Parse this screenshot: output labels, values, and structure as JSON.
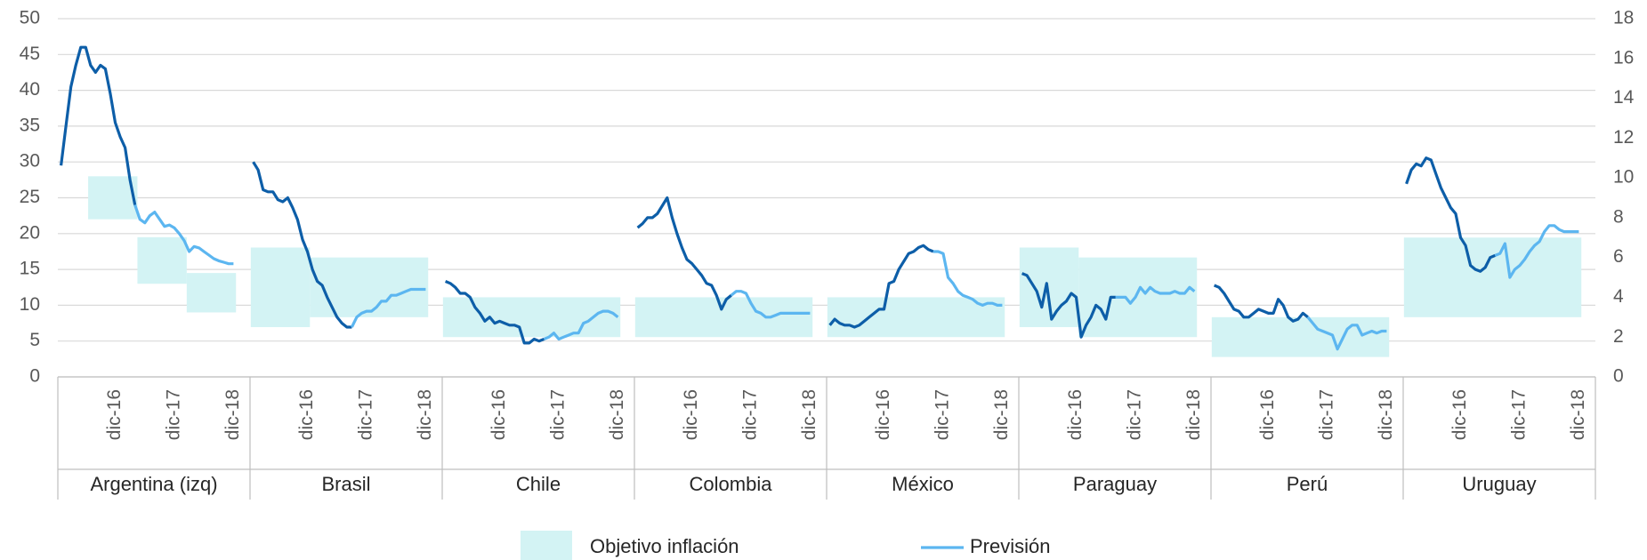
{
  "chart_data": {
    "type": "line",
    "ylim": [
      0,
      50
    ],
    "yticks": [
      0,
      5,
      10,
      15,
      20,
      25,
      30,
      35,
      40,
      45,
      50
    ],
    "y2lim": [
      0,
      18
    ],
    "y2ticks": [
      0,
      2,
      4,
      6,
      8,
      10,
      12,
      14,
      16,
      18
    ],
    "grid": true,
    "colors": {
      "actual": "#0d5ea8",
      "forecast": "#5cb6f0",
      "target": "#d3f3f4"
    },
    "legend": {
      "target": "Objetivo inflación",
      "forecast": "Previsión"
    },
    "groups": [
      {
        "name": "Argentina (izq)",
        "axis": "y",
        "categories": [
          null,
          null,
          null,
          null,
          null,
          null,
          null,
          null,
          null,
          null,
          null,
          "dic-16",
          null,
          null,
          null,
          null,
          null,
          null,
          null,
          null,
          null,
          null,
          null,
          "dic-17",
          null,
          null,
          null,
          null,
          null,
          null,
          null,
          null,
          null,
          null,
          null,
          "dic-18"
        ],
        "actual": [
          29.5,
          35,
          40.5,
          43.5,
          46,
          46,
          43.5,
          42.5,
          43.5,
          43,
          39.5,
          35.5,
          33.5,
          32,
          27.5,
          24,
          null,
          null,
          null,
          null,
          null,
          null,
          null,
          null,
          null,
          null,
          null,
          null,
          null,
          null,
          null,
          null,
          null,
          null,
          null,
          null
        ],
        "forecast": [
          null,
          null,
          null,
          null,
          null,
          null,
          null,
          null,
          null,
          null,
          null,
          null,
          null,
          null,
          null,
          24,
          22,
          21.5,
          22.5,
          23,
          22,
          21,
          21.2,
          20.8,
          20,
          19,
          17.5,
          18.2,
          18,
          17.5,
          17,
          16.5,
          16.2,
          16,
          15.8,
          15.8
        ],
        "targets": [
          {
            "start": 6,
            "end": 15,
            "low": 22,
            "high": 28
          },
          {
            "start": 16,
            "end": 25,
            "low": 13,
            "high": 19.5
          },
          {
            "start": 26,
            "end": 35,
            "low": 9,
            "high": 14.5
          }
        ]
      },
      {
        "name": "Brasil",
        "axis": "y2",
        "categories": [
          null,
          null,
          null,
          null,
          null,
          null,
          null,
          null,
          null,
          null,
          null,
          "dic-16",
          null,
          null,
          null,
          null,
          null,
          null,
          null,
          null,
          null,
          null,
          null,
          "dic-17",
          null,
          null,
          null,
          null,
          null,
          null,
          null,
          null,
          null,
          null,
          null,
          "dic-18"
        ],
        "actual": [
          10.8,
          10.4,
          9.4,
          9.3,
          9.3,
          8.9,
          8.8,
          9.0,
          8.5,
          7.9,
          6.9,
          6.3,
          5.4,
          4.8,
          4.6,
          4.0,
          3.5,
          3.0,
          2.7,
          2.5,
          2.5,
          null,
          null,
          null,
          null,
          null,
          null,
          null,
          null,
          null,
          null,
          null,
          null,
          null,
          null,
          null
        ],
        "forecast": [
          null,
          null,
          null,
          null,
          null,
          null,
          null,
          null,
          null,
          null,
          null,
          null,
          null,
          null,
          null,
          null,
          null,
          null,
          null,
          null,
          2.5,
          3.0,
          3.2,
          3.3,
          3.3,
          3.5,
          3.8,
          3.8,
          4.1,
          4.1,
          4.2,
          4.3,
          4.4,
          4.4,
          4.4,
          4.4
        ],
        "targets": [
          {
            "start": 0,
            "end": 11,
            "low": 2.5,
            "high": 6.5
          },
          {
            "start": 12,
            "end": 35,
            "low": 3,
            "high": 6
          }
        ]
      },
      {
        "name": "Chile",
        "axis": "y2",
        "categories": [
          null,
          null,
          null,
          null,
          null,
          null,
          null,
          null,
          null,
          null,
          null,
          "dic-16",
          null,
          null,
          null,
          null,
          null,
          null,
          null,
          null,
          null,
          null,
          null,
          "dic-17",
          null,
          null,
          null,
          null,
          null,
          null,
          null,
          null,
          null,
          null,
          null,
          "dic-18"
        ],
        "actual": [
          4.8,
          4.7,
          4.5,
          4.2,
          4.2,
          4.0,
          3.5,
          3.2,
          2.8,
          3.0,
          2.7,
          2.8,
          2.7,
          2.6,
          2.6,
          2.5,
          1.7,
          1.7,
          1.9,
          1.8,
          1.9,
          null,
          null,
          null,
          null,
          null,
          null,
          null,
          null,
          null,
          null,
          null,
          null,
          null,
          null,
          null
        ],
        "forecast": [
          null,
          null,
          null,
          null,
          null,
          null,
          null,
          null,
          null,
          null,
          null,
          null,
          null,
          null,
          null,
          null,
          null,
          null,
          null,
          null,
          1.9,
          2.0,
          2.2,
          1.9,
          2.0,
          2.1,
          2.2,
          2.2,
          2.7,
          2.8,
          3.0,
          3.2,
          3.3,
          3.3,
          3.2,
          3.0
        ],
        "targets": [
          {
            "start": 0,
            "end": 35,
            "low": 2,
            "high": 4
          }
        ]
      },
      {
        "name": "Colombia",
        "axis": "y2",
        "categories": [
          null,
          null,
          null,
          null,
          null,
          null,
          null,
          null,
          null,
          null,
          null,
          "dic-16",
          null,
          null,
          null,
          null,
          null,
          null,
          null,
          null,
          null,
          null,
          null,
          "dic-17",
          null,
          null,
          null,
          null,
          null,
          null,
          null,
          null,
          null,
          null,
          null,
          "dic-18"
        ],
        "actual": [
          7.5,
          7.7,
          8.0,
          8.0,
          8.2,
          8.6,
          9.0,
          8.0,
          7.2,
          6.5,
          5.9,
          5.7,
          5.4,
          5.1,
          4.7,
          4.6,
          4.1,
          3.4,
          3.9,
          4.1,
          null,
          null,
          null,
          null,
          null,
          null,
          null,
          null,
          null,
          null,
          null,
          null,
          null,
          null,
          null,
          null
        ],
        "forecast": [
          null,
          null,
          null,
          null,
          null,
          null,
          null,
          null,
          null,
          null,
          null,
          null,
          null,
          null,
          null,
          null,
          null,
          null,
          null,
          4.1,
          4.3,
          4.3,
          4.2,
          3.7,
          3.3,
          3.2,
          3.0,
          3.0,
          3.1,
          3.2,
          3.2,
          3.2,
          3.2,
          3.2,
          3.2,
          3.2
        ],
        "targets": [
          {
            "start": 0,
            "end": 35,
            "low": 2,
            "high": 4
          }
        ]
      },
      {
        "name": "México",
        "axis": "y2",
        "categories": [
          null,
          null,
          null,
          null,
          null,
          null,
          null,
          null,
          null,
          null,
          null,
          "dic-16",
          null,
          null,
          null,
          null,
          null,
          null,
          null,
          null,
          null,
          null,
          null,
          "dic-17",
          null,
          null,
          null,
          null,
          null,
          null,
          null,
          null,
          null,
          null,
          null,
          "dic-18"
        ],
        "actual": [
          2.6,
          2.9,
          2.7,
          2.6,
          2.6,
          2.5,
          2.6,
          2.8,
          3.0,
          3.2,
          3.4,
          3.4,
          4.7,
          4.8,
          5.4,
          5.8,
          6.2,
          6.3,
          6.5,
          6.6,
          6.4,
          6.3,
          null,
          null,
          null,
          null,
          null,
          null,
          null,
          null,
          null,
          null,
          null,
          null,
          null,
          null
        ],
        "forecast": [
          null,
          null,
          null,
          null,
          null,
          null,
          null,
          null,
          null,
          null,
          null,
          null,
          null,
          null,
          null,
          null,
          null,
          null,
          null,
          null,
          null,
          6.3,
          6.3,
          6.2,
          5.0,
          4.7,
          4.3,
          4.1,
          4.0,
          3.9,
          3.7,
          3.6,
          3.7,
          3.7,
          3.6,
          3.6
        ],
        "targets": [
          {
            "start": 0,
            "end": 35,
            "low": 2,
            "high": 4
          }
        ]
      },
      {
        "name": "Paraguay",
        "axis": "y2",
        "categories": [
          null,
          null,
          null,
          null,
          null,
          null,
          null,
          null,
          null,
          null,
          null,
          "dic-16",
          null,
          null,
          null,
          null,
          null,
          null,
          null,
          null,
          null,
          null,
          null,
          "dic-17",
          null,
          null,
          null,
          null,
          null,
          null,
          null,
          null,
          null,
          null,
          null,
          "dic-18"
        ],
        "actual": [
          5.2,
          5.1,
          4.7,
          4.3,
          3.5,
          4.7,
          2.9,
          3.3,
          3.6,
          3.8,
          4.2,
          4.0,
          2.0,
          2.6,
          3.0,
          3.6,
          3.4,
          2.9,
          4.0,
          4.0,
          null,
          null,
          null,
          null,
          null,
          null,
          null,
          null,
          null,
          null,
          null,
          null,
          null,
          null,
          null,
          null
        ],
        "forecast": [
          null,
          null,
          null,
          null,
          null,
          null,
          null,
          null,
          null,
          null,
          null,
          null,
          null,
          null,
          null,
          null,
          null,
          null,
          null,
          4.0,
          4.0,
          4.0,
          3.7,
          4.0,
          4.5,
          4.2,
          4.5,
          4.3,
          4.2,
          4.2,
          4.2,
          4.3,
          4.2,
          4.2,
          4.5,
          4.3
        ],
        "targets": [
          {
            "start": 0,
            "end": 11,
            "low": 2.5,
            "high": 6.5
          },
          {
            "start": 12,
            "end": 35,
            "low": 2,
            "high": 6
          }
        ]
      },
      {
        "name": "Perú",
        "axis": "y2",
        "categories": [
          null,
          null,
          null,
          null,
          null,
          null,
          null,
          null,
          null,
          null,
          null,
          "dic-16",
          null,
          null,
          null,
          null,
          null,
          null,
          null,
          null,
          null,
          null,
          null,
          "dic-17",
          null,
          null,
          null,
          null,
          null,
          null,
          null,
          null,
          null,
          null,
          null,
          "dic-18"
        ],
        "actual": [
          4.6,
          4.5,
          4.2,
          3.8,
          3.4,
          3.3,
          3.0,
          3.0,
          3.2,
          3.4,
          3.3,
          3.2,
          3.2,
          3.9,
          3.6,
          3.0,
          2.8,
          2.9,
          3.2,
          3.0,
          null,
          null,
          null,
          null,
          null,
          null,
          null,
          null,
          null,
          null,
          null,
          null,
          null,
          null,
          null,
          null
        ],
        "forecast": [
          null,
          null,
          null,
          null,
          null,
          null,
          null,
          null,
          null,
          null,
          null,
          null,
          null,
          null,
          null,
          null,
          null,
          null,
          null,
          3.0,
          2.7,
          2.4,
          2.3,
          2.2,
          2.1,
          1.4,
          1.9,
          2.4,
          2.6,
          2.6,
          2.1,
          2.2,
          2.3,
          2.2,
          2.3,
          2.3
        ],
        "targets": [
          {
            "start": 0,
            "end": 35,
            "low": 1,
            "high": 3
          }
        ]
      },
      {
        "name": "Uruguay",
        "axis": "y2",
        "categories": [
          null,
          null,
          null,
          null,
          null,
          null,
          null,
          null,
          null,
          null,
          null,
          "dic-16",
          null,
          null,
          null,
          null,
          null,
          null,
          null,
          null,
          null,
          null,
          null,
          "dic-17",
          null,
          null,
          null,
          null,
          null,
          null,
          null,
          null,
          null,
          null,
          null,
          "dic-18"
        ],
        "actual": [
          9.7,
          10.4,
          10.7,
          10.6,
          11.0,
          10.9,
          10.2,
          9.5,
          9.0,
          8.5,
          8.2,
          7.0,
          6.6,
          5.6,
          5.4,
          5.3,
          5.5,
          6.0,
          6.1,
          null,
          null,
          null,
          null,
          null,
          null,
          null,
          null,
          null,
          null,
          null,
          null,
          null,
          null,
          null,
          null,
          null
        ],
        "forecast": [
          null,
          null,
          null,
          null,
          null,
          null,
          null,
          null,
          null,
          null,
          null,
          null,
          null,
          null,
          null,
          null,
          null,
          null,
          6.1,
          6.2,
          6.7,
          5.0,
          5.4,
          5.6,
          5.9,
          6.3,
          6.6,
          6.8,
          7.3,
          7.6,
          7.6,
          7.4,
          7.3,
          7.3,
          7.3,
          7.3
        ],
        "targets": [
          {
            "start": 0,
            "end": 35,
            "low": 3,
            "high": 7
          }
        ]
      }
    ]
  }
}
